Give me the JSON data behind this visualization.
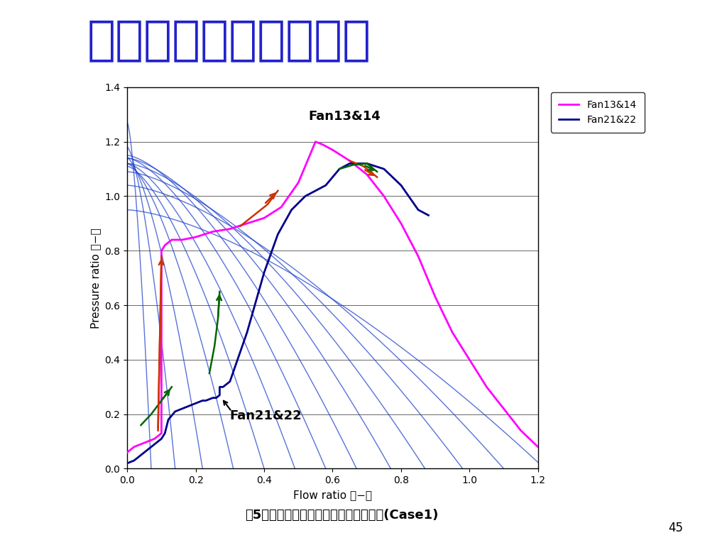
{
  "title": "シミュレーション結果",
  "title_color": "#2222CC",
  "title_fontsize": 48,
  "xlabel": "Flow ratio （−）",
  "ylabel": "Pressure ratio （−）",
  "xlim": [
    0,
    1.2
  ],
  "ylim": [
    0,
    1.4
  ],
  "xticks": [
    0,
    0.2,
    0.4,
    0.6,
    0.8,
    1.0,
    1.2
  ],
  "yticks": [
    0,
    0.2,
    0.4,
    0.6,
    0.8,
    1.0,
    1.2,
    1.4
  ],
  "caption": "図5　ファン起動時の風量と圧力の関係(Case1)",
  "page_number": "45",
  "legend_labels": [
    "Fan13&14",
    "Fan21&22"
  ],
  "fan_curve_color": "#2244CC",
  "fan13_14_color": "#FF00FF",
  "fan21_22_color": "#00008B",
  "orange_color": "#CC3300",
  "green_color": "#006600",
  "annotation_fan1314": "Fan13&14",
  "annotation_fan2122": "Fan21&22",
  "background_color": "#FFFFFF",
  "fan_curve_alpha": 0.75,
  "fan_curve_lw": 1.0
}
